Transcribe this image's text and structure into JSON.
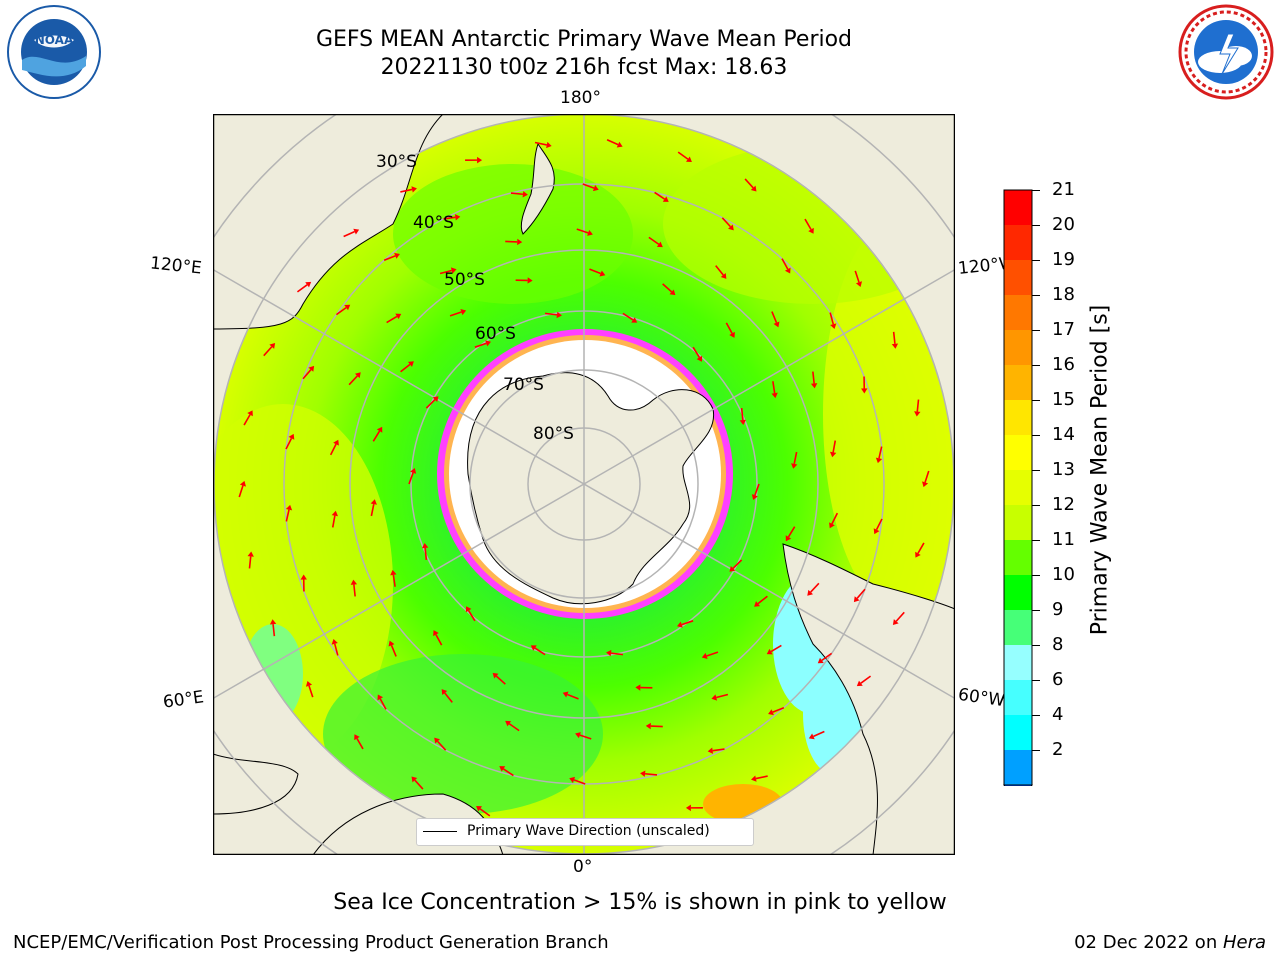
{
  "header": {
    "title_line1": "GEFS MEAN Antarctic Primary Wave Mean Period",
    "title_line2": "20221130 t00z 216h fcst   Max: 18.63"
  },
  "logos": {
    "left": {
      "text": "NOAA",
      "ring_text": "NATIONAL OCEANIC AND ATMOSPHERIC ADMINISTRATION · U.S. DEPARTMENT OF COMMERCE",
      "color": "#1a5aa8"
    },
    "right": {
      "text": "NATIONAL WEATHER SERVICE",
      "color": "#d81e1e"
    }
  },
  "map": {
    "longitude_labels": {
      "top": "180°",
      "bottom": "0°",
      "upper_left": "120°E",
      "upper_right": "120°W",
      "lower_left": "60°E",
      "lower_right": "60°W"
    },
    "latitude_labels": [
      "30°S",
      "40°S",
      "50°S",
      "60°S",
      "70°S",
      "80°S"
    ],
    "legend_label": "Primary Wave Direction (unscaled)",
    "colors": {
      "land": "#eeecdc",
      "ice": "#ffffff",
      "arrow": "#ff0000",
      "grid": "#b4b4b4"
    }
  },
  "colorbar": {
    "label": "Primary Wave Mean Period [s]",
    "ticks": [
      "21",
      "20",
      "19",
      "18",
      "17",
      "16",
      "15",
      "14",
      "13",
      "12",
      "11",
      "10",
      "9",
      "8",
      "6",
      "4",
      "2"
    ],
    "colors_top_to_bottom": [
      "#ff0000",
      "#ff2800",
      "#ff5000",
      "#ff7800",
      "#ff9600",
      "#ffb400",
      "#ffe600",
      "#ffff00",
      "#e6ff00",
      "#c8ff00",
      "#64ff00",
      "#00ff00",
      "#46ff78",
      "#96ffff",
      "#46ffff",
      "#00ffff",
      "#00a0ff",
      "#0050ff"
    ]
  },
  "footer": {
    "note": "Sea Ice Concentration > 15% is shown in pink to yellow",
    "credit": "NCEP/EMC/Verification Post Processing Product Generation Branch",
    "date": "02 Dec 2022 on ",
    "machine": "Hera"
  }
}
